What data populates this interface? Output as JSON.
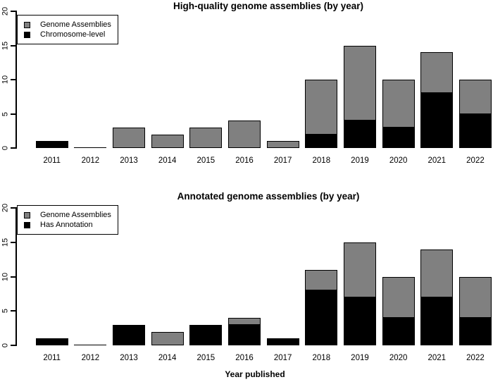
{
  "figure": {
    "background": "#ffffff",
    "bar_fill_gray": "#808080",
    "bar_fill_black": "#000000",
    "bar_border": "#000000"
  },
  "chart_data": [
    {
      "type": "bar",
      "stacked": true,
      "title": "High-quality genome assemblies (by year)",
      "categories": [
        "2011",
        "2012",
        "2013",
        "2014",
        "2015",
        "2016",
        "2017",
        "2018",
        "2019",
        "2020",
        "2021",
        "2022"
      ],
      "series": [
        {
          "name": "Genome Assemblies",
          "role": "total",
          "color": "#808080",
          "values": [
            1,
            0,
            3,
            2,
            3,
            4,
            1,
            10,
            15,
            10,
            14,
            10
          ]
        },
        {
          "name": "Chromosome-level",
          "role": "subset",
          "color": "#000000",
          "values": [
            1,
            0,
            0,
            0,
            0,
            0,
            0,
            2,
            4,
            3,
            8,
            5
          ]
        }
      ],
      "xlabel": "",
      "ylabel": "",
      "ylim": [
        0,
        20
      ],
      "yticks": [
        0,
        5,
        10,
        15,
        20
      ],
      "legend_position": "top-left",
      "grid": false
    },
    {
      "type": "bar",
      "stacked": true,
      "title": "Annotated genome assemblies (by year)",
      "categories": [
        "2011",
        "2012",
        "2013",
        "2014",
        "2015",
        "2016",
        "2017",
        "2018",
        "2019",
        "2020",
        "2021",
        "2022"
      ],
      "series": [
        {
          "name": "Genome Assemblies",
          "role": "total",
          "color": "#808080",
          "values": [
            1,
            0,
            3,
            2,
            3,
            4,
            1,
            11,
            15,
            10,
            14,
            10
          ]
        },
        {
          "name": "Has Annotation",
          "role": "subset",
          "color": "#000000",
          "values": [
            1,
            0,
            3,
            0,
            3,
            3,
            1,
            8,
            7,
            4,
            7,
            4
          ]
        }
      ],
      "xlabel": "Year published",
      "ylabel": "",
      "ylim": [
        0,
        20
      ],
      "yticks": [
        0,
        5,
        10,
        15,
        20
      ],
      "legend_position": "top-left",
      "grid": false
    }
  ]
}
